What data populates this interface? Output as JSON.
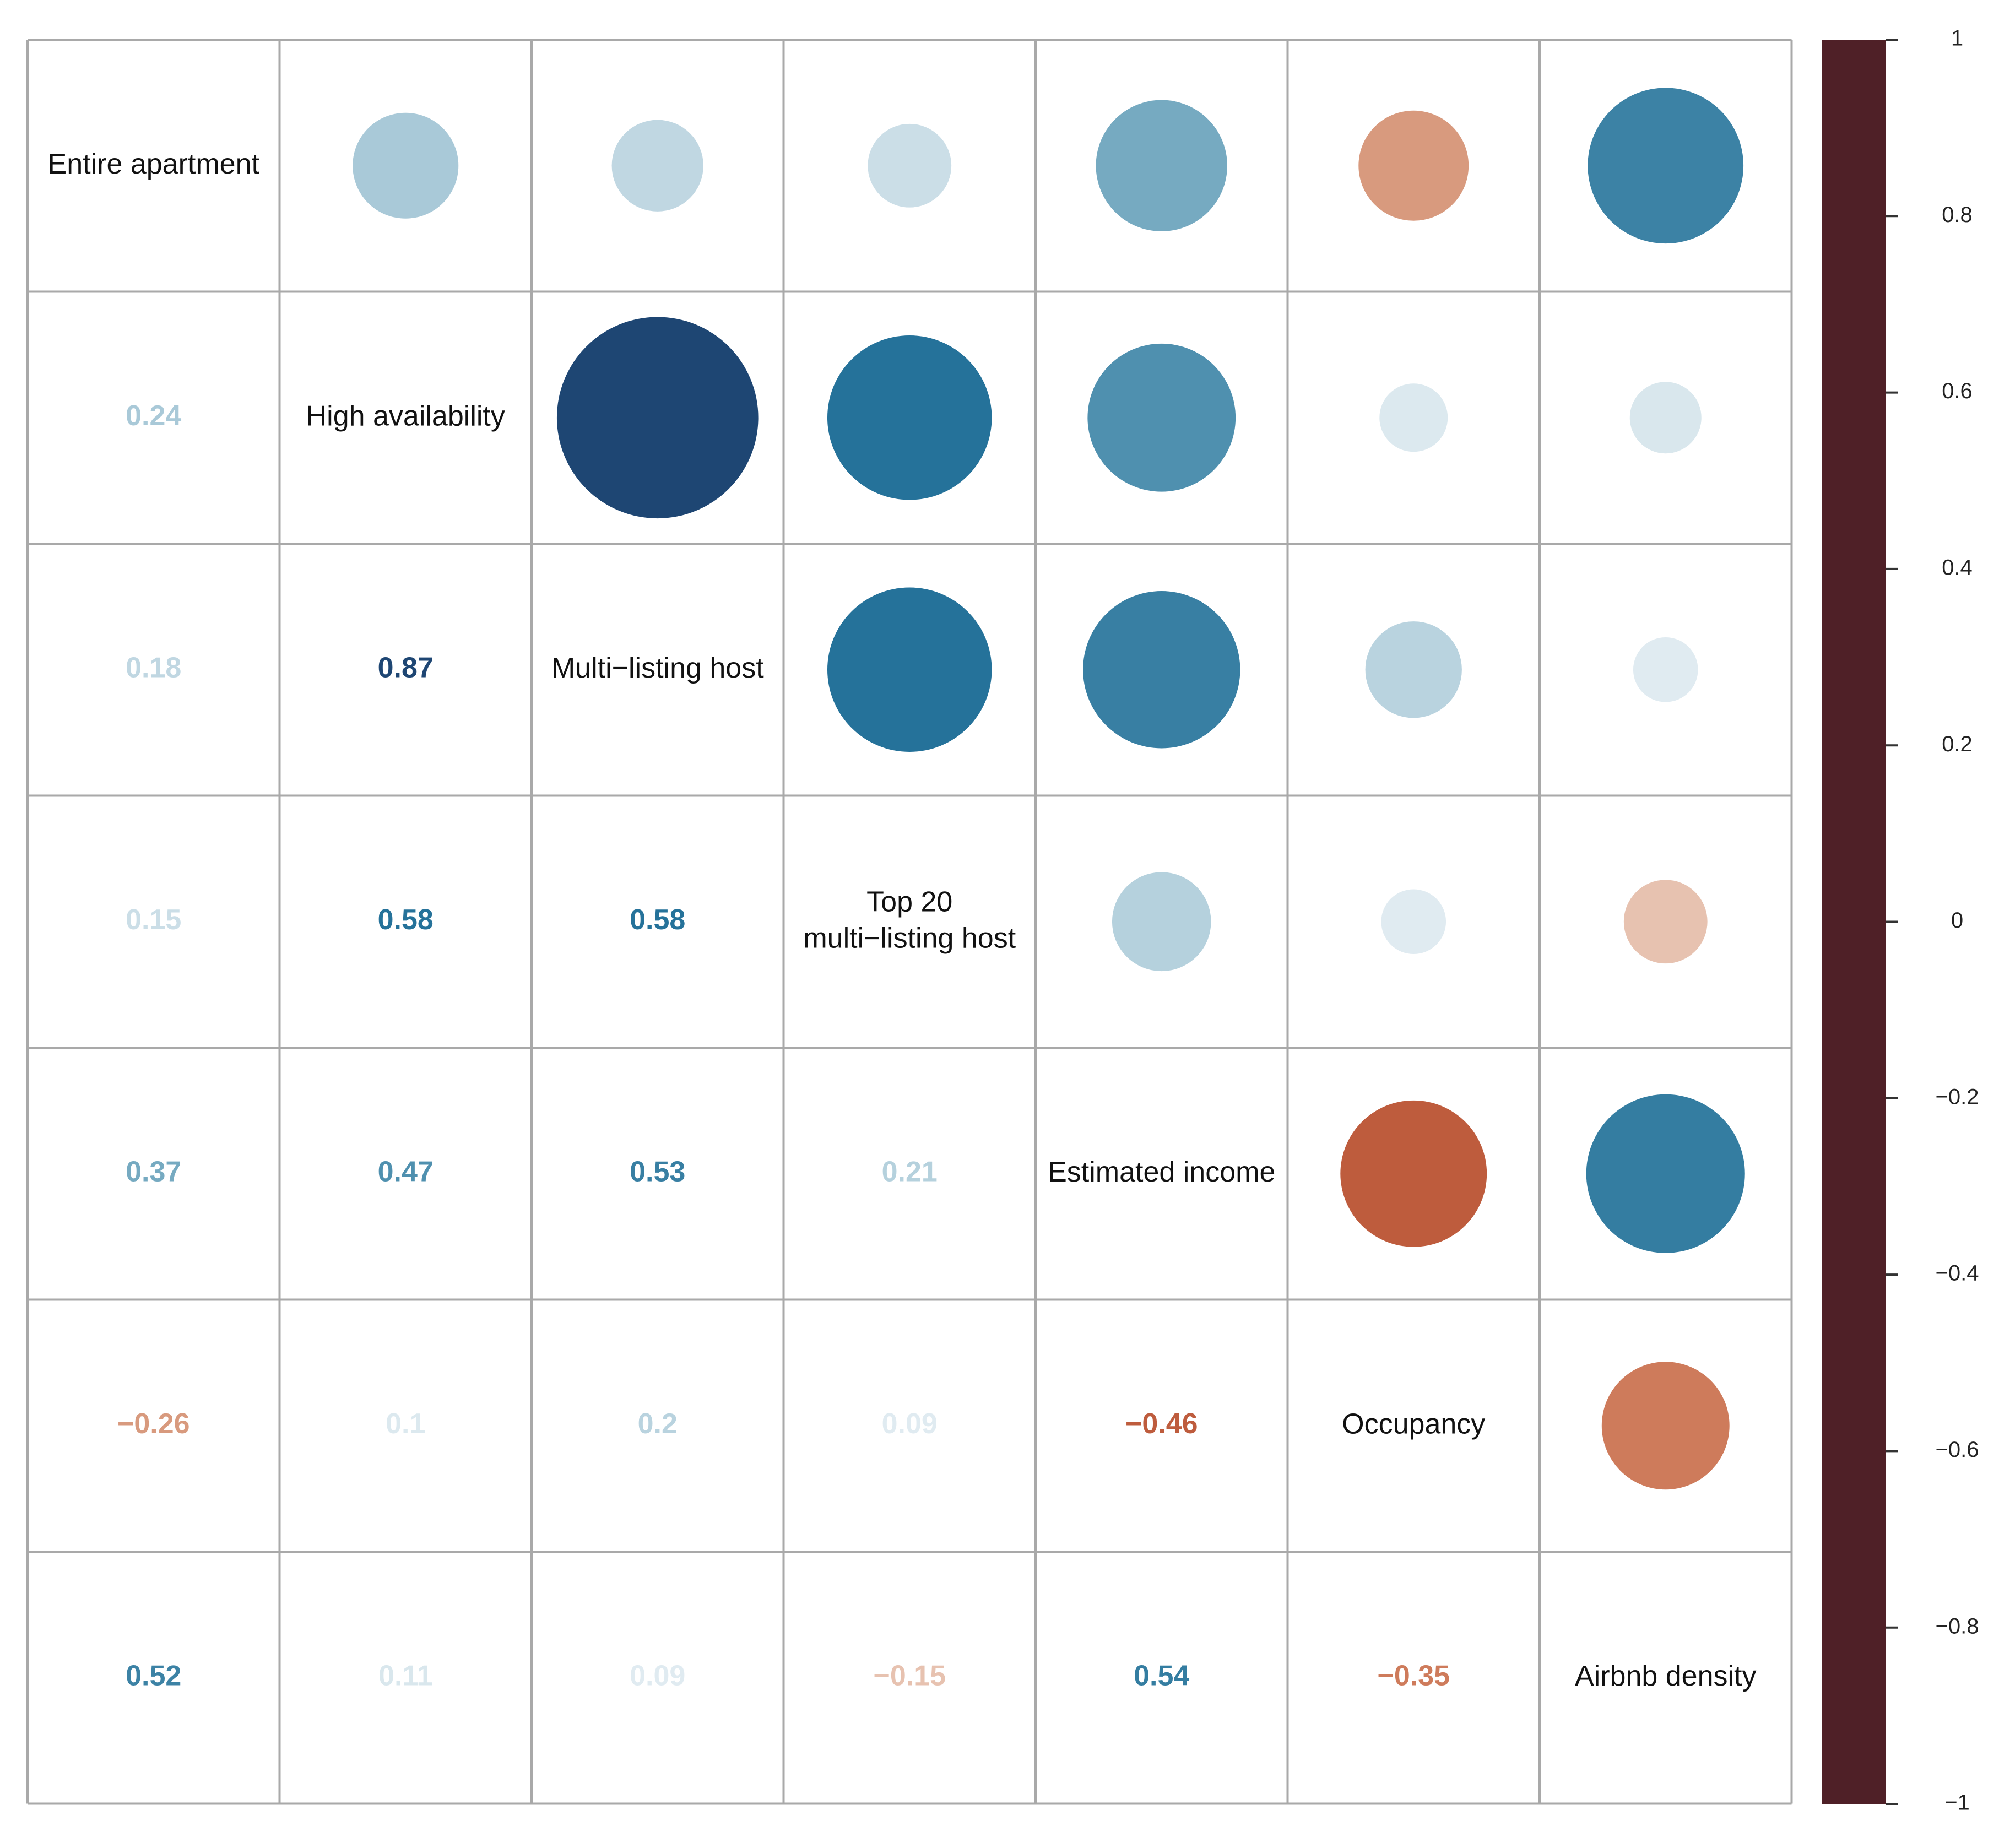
{
  "chart_data": {
    "type": "heatmap",
    "variables": [
      "Entire apartment",
      "High availability",
      "Multi−listing host",
      "Top 20\nmulti−listing host",
      "Estimated income",
      "Occupancy",
      "Airbnb density"
    ],
    "matrix": [
      [
        1,
        0.24,
        0.18,
        0.15,
        0.37,
        -0.26,
        0.52
      ],
      [
        0.24,
        1,
        0.87,
        0.58,
        0.47,
        0.1,
        0.11
      ],
      [
        0.18,
        0.87,
        1,
        0.58,
        0.53,
        0.2,
        0.09
      ],
      [
        0.15,
        0.58,
        0.58,
        1,
        0.21,
        0.09,
        -0.15
      ],
      [
        0.37,
        0.47,
        0.53,
        0.21,
        1,
        -0.46,
        0.54
      ],
      [
        -0.26,
        0.1,
        0.2,
        0.09,
        -0.46,
        1,
        -0.35
      ],
      [
        0.52,
        0.11,
        0.09,
        -0.15,
        0.54,
        -0.35,
        1
      ]
    ],
    "lower_labels": [
      [],
      [
        "0.24"
      ],
      [
        "0.18",
        "0.87"
      ],
      [
        "0.15",
        "0.58",
        "0.58"
      ],
      [
        "0.37",
        "0.47",
        "0.53",
        "0.21"
      ],
      [
        "−0.26",
        "0.1",
        "0.2",
        "0.09",
        "−0.46"
      ],
      [
        "0.52",
        "0.11",
        "0.09",
        "−0.15",
        "0.54",
        "−0.35"
      ]
    ],
    "upper": "circle",
    "lower": "number",
    "diagonal": "variable name",
    "color_range": [
      -1,
      1
    ],
    "colorbar_ticks": [
      "1",
      "0.8",
      "0.6",
      "0.4",
      "0.2",
      "0",
      "−0.2",
      "−0.4",
      "−0.6",
      "−0.8",
      "−1"
    ],
    "colorbar_tick_values": [
      1,
      0.8,
      0.6,
      0.4,
      0.2,
      0,
      -0.2,
      -0.4,
      -0.6,
      -0.8,
      -1
    ],
    "colorbar_stops": [
      {
        "value": -1,
        "color": "#4f2027"
      },
      {
        "value": -0.8,
        "color": "#7d2422"
      },
      {
        "value": -0.6,
        "color": "#a73a24"
      },
      {
        "value": -0.4,
        "color": "#c86a47"
      },
      {
        "value": -0.2,
        "color": "#dfae96"
      },
      {
        "value": 0,
        "color": "#ffffff"
      },
      {
        "value": 0.2,
        "color": "#b9d3df"
      },
      {
        "value": 0.4,
        "color": "#6aa3bc"
      },
      {
        "value": 0.6,
        "color": "#1d6c96"
      },
      {
        "value": 0.8,
        "color": "#1c4f85"
      },
      {
        "value": 1,
        "color": "#233552"
      }
    ],
    "grid": true,
    "legend": "right colorbar"
  }
}
